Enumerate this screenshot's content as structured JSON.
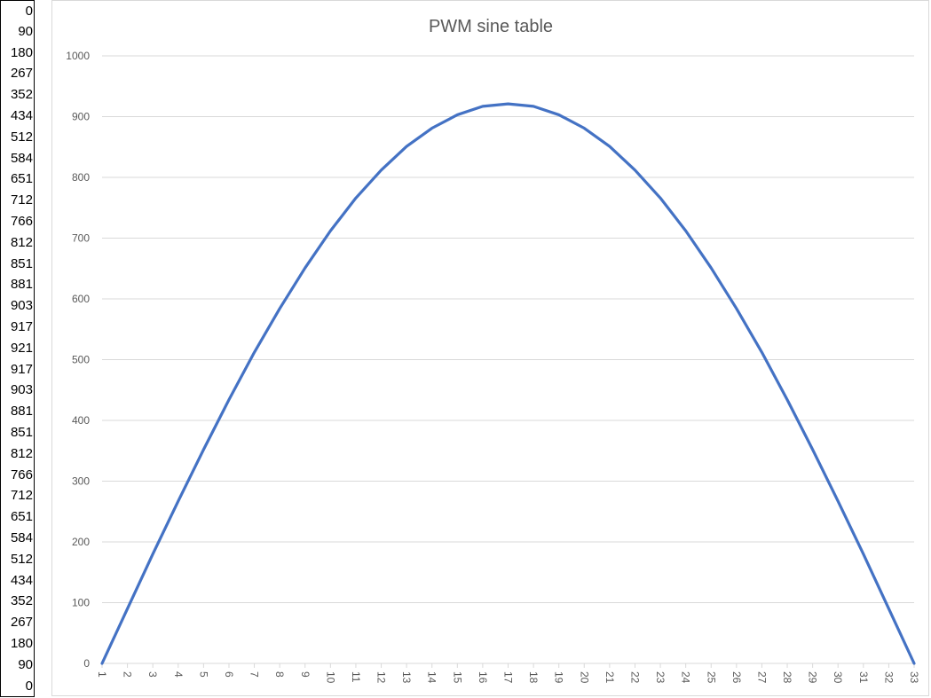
{
  "cells": [
    "0",
    "90",
    "180",
    "267",
    "352",
    "434",
    "512",
    "584",
    "651",
    "712",
    "766",
    "812",
    "851",
    "881",
    "903",
    "917",
    "921",
    "917",
    "903",
    "881",
    "851",
    "812",
    "766",
    "712",
    "651",
    "584",
    "512",
    "434",
    "352",
    "267",
    "180",
    "90",
    "0"
  ],
  "chart_data": {
    "type": "line",
    "title": "PWM sine table",
    "xlabel": "",
    "ylabel": "",
    "x": [
      1,
      2,
      3,
      4,
      5,
      6,
      7,
      8,
      9,
      10,
      11,
      12,
      13,
      14,
      15,
      16,
      17,
      18,
      19,
      20,
      21,
      22,
      23,
      24,
      25,
      26,
      27,
      28,
      29,
      30,
      31,
      32,
      33
    ],
    "series": [
      {
        "values": [
          0,
          90,
          180,
          267,
          352,
          434,
          512,
          584,
          651,
          712,
          766,
          812,
          851,
          881,
          903,
          917,
          921,
          917,
          903,
          881,
          851,
          812,
          766,
          712,
          651,
          584,
          512,
          434,
          352,
          267,
          180,
          90,
          0
        ],
        "color": "#4472c4"
      }
    ],
    "ylim": [
      0,
      1000
    ],
    "yticks": [
      0,
      100,
      200,
      300,
      400,
      500,
      600,
      700,
      800,
      900,
      1000
    ],
    "grid": true,
    "legend": "none"
  },
  "colors": {
    "line": "#4472c4",
    "grid": "#d9d9d9",
    "axis_text": "#595959",
    "title_text": "#595959"
  }
}
